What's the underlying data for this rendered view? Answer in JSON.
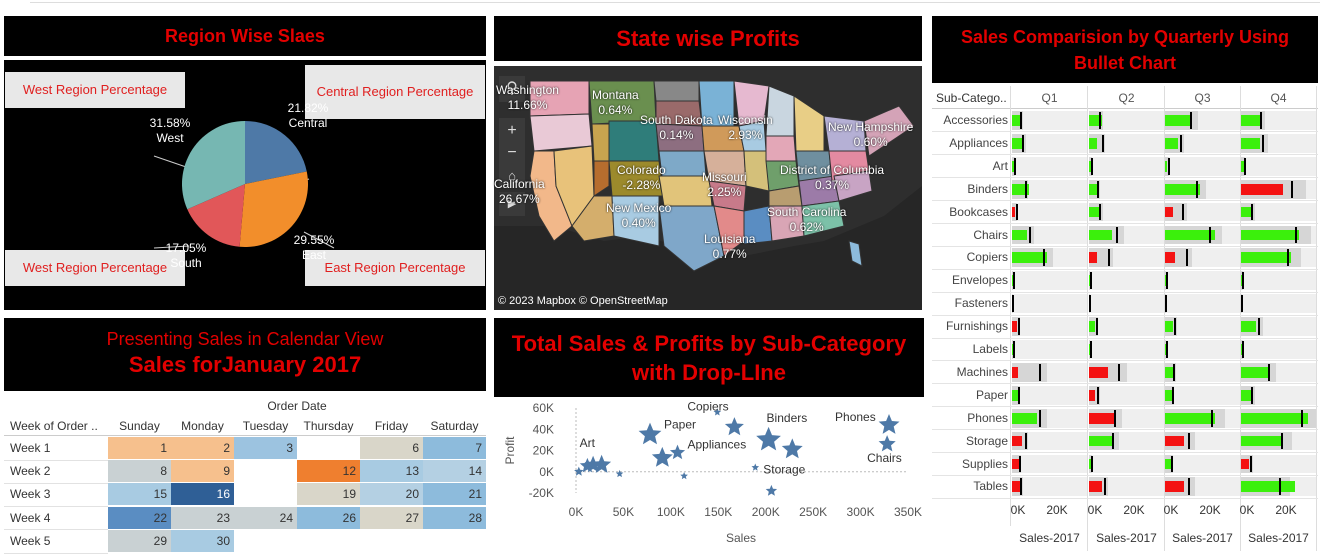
{
  "region": {
    "title": "Region Wise Slaes",
    "callouts": {
      "west_top": "West Region  Percentage",
      "central": "Central Region Percentage",
      "west_bottom": "West Region Percentage",
      "east": "East Region Percentage"
    },
    "slices": [
      {
        "name": "Central",
        "pct": 21.82,
        "label": "21.82%",
        "color": "#4e79a7"
      },
      {
        "name": "East",
        "pct": 29.55,
        "label": "29.55%",
        "color": "#f28e2b"
      },
      {
        "name": "South",
        "pct": 17.05,
        "label": "17.05%",
        "color": "#e15759"
      },
      {
        "name": "West",
        "pct": 31.58,
        "label": "31.58%",
        "color": "#76b7b2"
      }
    ]
  },
  "map": {
    "title": "State wise Profits",
    "labels": [
      {
        "name": "Washington",
        "value": "11.66%"
      },
      {
        "name": "Montana",
        "value": "0.64%"
      },
      {
        "name": "South Dakota",
        "value": "0.14%"
      },
      {
        "name": "Wisconsin",
        "value": "2.93%"
      },
      {
        "name": "New Hampshire",
        "value": "0.60%"
      },
      {
        "name": "California",
        "value": "26.67%"
      },
      {
        "name": "Colorado",
        "value": "-2.28%"
      },
      {
        "name": "Missouri",
        "value": "2.25%"
      },
      {
        "name": "District of Columbia",
        "value": "0.37%"
      },
      {
        "name": "New Mexico",
        "value": "0.40%"
      },
      {
        "name": "South Carolina",
        "value": "0.62%"
      },
      {
        "name": "Louisiana",
        "value": "0.77%"
      }
    ],
    "attribution": "© 2023 Mapbox  © OpenStreetMap"
  },
  "calendar": {
    "title_line1": "Presenting Sales in Calendar View",
    "title_line2": "Sales forJanuary 2017",
    "group_header": "Order Date",
    "row_header": "Week of Order ..",
    "days": [
      "Sunday",
      "Monday",
      "Tuesday",
      "Thursday",
      "Friday",
      "Saturday"
    ],
    "weeks": [
      {
        "label": "Week 1",
        "cells": [
          {
            "v": "1",
            "c": "#f6c08d"
          },
          {
            "v": "2",
            "c": "#f6c08d"
          },
          {
            "v": "3",
            "c": "#9cc3e0"
          },
          {
            "v": "",
            "c": ""
          },
          {
            "v": "6",
            "c": "#d9d6c9"
          },
          {
            "v": "7",
            "c": "#8dbbdc"
          }
        ]
      },
      {
        "label": "Week 2",
        "cells": [
          {
            "v": "8",
            "c": "#c9d1d3"
          },
          {
            "v": "9",
            "c": "#f6c08d"
          },
          {
            "v": "",
            "c": ""
          },
          {
            "v": "12",
            "c": "#ef7f2f"
          },
          {
            "v": "13",
            "c": "#a8cbe2"
          },
          {
            "v": "14",
            "c": "#b4d0e3"
          }
        ]
      },
      {
        "label": "Week 3",
        "cells": [
          {
            "v": "15",
            "c": "#a8cbe2"
          },
          {
            "v": "16",
            "c": "#2f5f96"
          },
          {
            "v": "",
            "c": ""
          },
          {
            "v": "19",
            "c": "#d9d6c9"
          },
          {
            "v": "20",
            "c": "#b4d0e3"
          },
          {
            "v": "21",
            "c": "#8dbbdc"
          }
        ]
      },
      {
        "label": "Week 4",
        "cells": [
          {
            "v": "22",
            "c": "#5a8dc2"
          },
          {
            "v": "23",
            "c": "#c9d1d3"
          },
          {
            "v": "24",
            "c": "#c9d1d3"
          },
          {
            "v": "26",
            "c": "#8dbbdc"
          },
          {
            "v": "27",
            "c": "#d9d6c9"
          },
          {
            "v": "28",
            "c": "#8dbbdc"
          }
        ]
      },
      {
        "label": "Week 5",
        "cells": [
          {
            "v": "29",
            "c": "#c9d1d3"
          },
          {
            "v": "30",
            "c": "#a8cbe2"
          },
          {
            "v": "",
            "c": ""
          },
          {
            "v": "",
            "c": ""
          },
          {
            "v": "",
            "c": ""
          },
          {
            "v": "",
            "c": ""
          }
        ]
      }
    ]
  },
  "scatter": {
    "title_line1": "Total Sales & Profits by Sub-Category",
    "title_line2": "with Drop-LIne",
    "chart_data": {
      "type": "scatter",
      "xlabel": "Sales",
      "ylabel": "Profit",
      "xlim": [
        0,
        350000
      ],
      "ylim": [
        -20000,
        60000
      ],
      "xticks": [
        "0K",
        "50K",
        "100K",
        "150K",
        "200K",
        "250K",
        "300K",
        "350K"
      ],
      "yticks": [
        "-20K",
        "0K",
        "20K",
        "40K",
        "60K"
      ],
      "points": [
        {
          "x": 3000,
          "y": 100,
          "s": 5,
          "label": ""
        },
        {
          "x": 12000,
          "y": 5500,
          "s": 8,
          "label": ""
        },
        {
          "x": 18000,
          "y": 6500,
          "s": 9,
          "label": ""
        },
        {
          "x": 27000,
          "y": 6500,
          "s": 10,
          "label": "Art"
        },
        {
          "x": 46000,
          "y": -2000,
          "s": 4,
          "label": ""
        },
        {
          "x": 78000,
          "y": 35000,
          "s": 12,
          "label": "Paper"
        },
        {
          "x": 91000,
          "y": 13000,
          "s": 11,
          "label": ""
        },
        {
          "x": 107000,
          "y": 18000,
          "s": 8,
          "label": "Appliances"
        },
        {
          "x": 114000,
          "y": -4000,
          "s": 4,
          "label": ""
        },
        {
          "x": 149000,
          "y": 56000,
          "s": 4,
          "label": "Copiers"
        },
        {
          "x": 167000,
          "y": 42000,
          "s": 10,
          "label": ""
        },
        {
          "x": 189000,
          "y": 4000,
          "s": 4,
          "label": "Storage"
        },
        {
          "x": 203000,
          "y": 30000,
          "s": 13,
          "label": "Binders"
        },
        {
          "x": 206000,
          "y": -18000,
          "s": 6,
          "label": ""
        },
        {
          "x": 228000,
          "y": 21000,
          "s": 11,
          "label": ""
        },
        {
          "x": 330000,
          "y": 44000,
          "s": 11,
          "label": "Phones"
        },
        {
          "x": 328000,
          "y": 26000,
          "s": 9,
          "label": "Chairs"
        }
      ],
      "color": "#4e79a7"
    }
  },
  "bullet": {
    "title": "Sales Comparision by Quarterly Using Bullet Chart",
    "row_header": "Sub-Catego..",
    "quarters": [
      "Q1",
      "Q2",
      "Q3",
      "Q4"
    ],
    "axis_ticks": [
      "0K",
      "20K"
    ],
    "footer": "Sales-2017",
    "max": 36000,
    "rows": [
      {
        "name": "Accessories",
        "q": [
          [
            5000,
            4000,
            true
          ],
          [
            6000,
            5000,
            true
          ],
          [
            12000,
            12000,
            true
          ],
          [
            10000,
            9000,
            true
          ]
        ]
      },
      {
        "name": "Appliances",
        "q": [
          [
            5000,
            5000,
            true
          ],
          [
            4000,
            6000,
            true
          ],
          [
            6000,
            7000,
            true
          ],
          [
            9000,
            10000,
            true
          ]
        ]
      },
      {
        "name": "Art",
        "q": [
          [
            1000,
            1000,
            true
          ],
          [
            1000,
            1000,
            true
          ],
          [
            1000,
            1500,
            true
          ],
          [
            1500,
            1500,
            true
          ]
        ]
      },
      {
        "name": "Binders",
        "q": [
          [
            8000,
            6000,
            true
          ],
          [
            5000,
            4000,
            true
          ],
          [
            17000,
            15000,
            true
          ],
          [
            20000,
            24000,
            false
          ]
        ]
      },
      {
        "name": "Bookcases",
        "q": [
          [
            1500,
            2000,
            false
          ],
          [
            5000,
            5000,
            true
          ],
          [
            4000,
            8000,
            false
          ],
          [
            5000,
            5000,
            true
          ]
        ]
      },
      {
        "name": "Chairs",
        "q": [
          [
            7000,
            8000,
            true
          ],
          [
            11000,
            13000,
            true
          ],
          [
            24000,
            21000,
            true
          ],
          [
            28000,
            26000,
            true
          ]
        ]
      },
      {
        "name": "Copiers",
        "q": [
          [
            17000,
            15000,
            true
          ],
          [
            4000,
            9000,
            false
          ],
          [
            5000,
            10000,
            false
          ],
          [
            24000,
            22000,
            true
          ]
        ]
      },
      {
        "name": "Envelopes",
        "q": [
          [
            500,
            500,
            true
          ],
          [
            500,
            500,
            true
          ],
          [
            500,
            500,
            true
          ],
          [
            700,
            700,
            true
          ]
        ]
      },
      {
        "name": "Fasteners",
        "q": [
          [
            200,
            200,
            true
          ],
          [
            200,
            200,
            true
          ],
          [
            200,
            200,
            true
          ],
          [
            200,
            200,
            true
          ]
        ]
      },
      {
        "name": "Furnishings",
        "q": [
          [
            2500,
            3000,
            false
          ],
          [
            3000,
            3500,
            true
          ],
          [
            4000,
            4500,
            true
          ],
          [
            7000,
            8000,
            true
          ]
        ]
      },
      {
        "name": "Labels",
        "q": [
          [
            300,
            300,
            true
          ],
          [
            400,
            400,
            true
          ],
          [
            300,
            300,
            true
          ],
          [
            700,
            700,
            true
          ]
        ]
      },
      {
        "name": "Machines",
        "q": [
          [
            3000,
            13000,
            false
          ],
          [
            9000,
            14000,
            false
          ],
          [
            4000,
            4000,
            true
          ],
          [
            13000,
            13000,
            true
          ]
        ]
      },
      {
        "name": "Paper",
        "q": [
          [
            3000,
            3000,
            true
          ],
          [
            3000,
            4000,
            false
          ],
          [
            4000,
            3500,
            true
          ],
          [
            5000,
            5000,
            true
          ]
        ]
      },
      {
        "name": "Phones",
        "q": [
          [
            12000,
            13000,
            true
          ],
          [
            12000,
            12000,
            false
          ],
          [
            24000,
            22000,
            true
          ],
          [
            32000,
            29000,
            true
          ]
        ]
      },
      {
        "name": "Storage",
        "q": [
          [
            5000,
            6000,
            false
          ],
          [
            12000,
            11000,
            true
          ],
          [
            9000,
            11000,
            false
          ],
          [
            20000,
            19000,
            true
          ]
        ]
      },
      {
        "name": "Supplies",
        "q": [
          [
            4000,
            3500,
            false
          ],
          [
            1000,
            1000,
            true
          ],
          [
            3000,
            3000,
            true
          ],
          [
            4000,
            4500,
            false
          ]
        ]
      },
      {
        "name": "Tables",
        "q": [
          [
            4000,
            4000,
            false
          ],
          [
            6000,
            7000,
            false
          ],
          [
            9000,
            11000,
            false
          ],
          [
            26000,
            18000,
            true
          ]
        ]
      }
    ]
  }
}
